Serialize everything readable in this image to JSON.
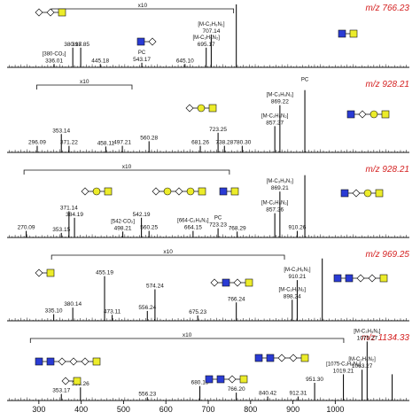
{
  "chart_data": {
    "type": "mass-spectra",
    "xlabel": "",
    "ylabel": "",
    "xlim": [
      225,
      1175
    ],
    "x_ticks": [
      300,
      400,
      500,
      600,
      700,
      800,
      900,
      1000
    ],
    "magnification_label": "x10",
    "colors": {
      "precursor": "#d42020",
      "hexnac": "#2a3bd4",
      "hex": "#ecec2a",
      "ink": "#111111"
    },
    "panels": [
      {
        "precursor": "m/z 766.23",
        "precursor_mz": 766.23,
        "zoom_range": [
          330,
          760
        ],
        "peaks": [
          {
            "mz": 336.01,
            "h": 0.05,
            "label": "336.01",
            "lead": "[380-CO₂]"
          },
          {
            "mz": 380.17,
            "h": 0.3,
            "label": "380.17"
          },
          {
            "mz": 398.85,
            "h": 0.3,
            "label": "398.85"
          },
          {
            "mz": 445.18,
            "h": 0.05,
            "label": "445.18"
          },
          {
            "mz": 543.17,
            "h": 0.07,
            "label": "543.17",
            "lead": "PC"
          },
          {
            "mz": 645.1,
            "h": 0.05,
            "label": "645.10"
          },
          {
            "mz": 695.17,
            "h": 0.3,
            "label": "695.17",
            "lead": "[M-C₂H₅N₂]"
          },
          {
            "mz": 707.14,
            "h": 0.5,
            "label": "707.14",
            "lead": "[M-C₃H₉N₁]"
          },
          {
            "mz": 766.23,
            "h": 0.96
          }
        ]
      },
      {
        "precursor": "m/z 928.21",
        "precursor_mz": 928.21,
        "zoom_range": [
          295,
          520
        ],
        "peaks": [
          {
            "mz": 296.09,
            "h": 0.1,
            "label": "296.09"
          },
          {
            "mz": 353.14,
            "h": 0.28,
            "label": "353.14"
          },
          {
            "mz": 371.22,
            "h": 0.1,
            "label": "371.22"
          },
          {
            "mz": 458.11,
            "h": 0.09,
            "label": "458.11"
          },
          {
            "mz": 497.21,
            "h": 0.1,
            "label": "497.21"
          },
          {
            "mz": 560.28,
            "h": 0.17,
            "label": "560.28"
          },
          {
            "mz": 681.26,
            "h": 0.1,
            "label": "681.26"
          },
          {
            "mz": 723.25,
            "h": 0.3,
            "label": "723.25"
          },
          {
            "mz": 738.28,
            "h": 0.1,
            "label": "738.28"
          },
          {
            "mz": 780.3,
            "h": 0.1,
            "label": "780.30"
          },
          {
            "mz": 857.27,
            "h": 0.4,
            "label": "857.27",
            "lead": "[M-C₂H₅N₂]"
          },
          {
            "mz": 869.22,
            "h": 0.72,
            "label": "869.22",
            "lead": "[M-C₃H₉N₁]"
          },
          {
            "mz": 928.21,
            "h": 0.95,
            "lead": "PC"
          }
        ]
      },
      {
        "precursor": "m/z 928.21",
        "precursor_mz": 928.21,
        "zoom_range": [
          265,
          750
        ],
        "peaks": [
          {
            "mz": 270.09,
            "h": 0.1,
            "label": "270.09"
          },
          {
            "mz": 353.15,
            "h": 0.07,
            "label": "353.15"
          },
          {
            "mz": 371.14,
            "h": 0.4,
            "label": "371.14"
          },
          {
            "mz": 384.19,
            "h": 0.3,
            "label": "384.19"
          },
          {
            "mz": 498.21,
            "h": 0.09,
            "label": "498.21",
            "lead": "[542-CO₂]"
          },
          {
            "mz": 542.19,
            "h": 0.3,
            "label": "542.19"
          },
          {
            "mz": 560.25,
            "h": 0.1,
            "label": "560.25"
          },
          {
            "mz": 664.15,
            "h": 0.1,
            "label": "664.15",
            "lead": "[664-C₂H₅N₂]"
          },
          {
            "mz": 723.23,
            "h": 0.14,
            "label": "723.23",
            "lead": "PC"
          },
          {
            "mz": 768.29,
            "h": 0.09,
            "label": "768.29"
          },
          {
            "mz": 857.26,
            "h": 0.37,
            "label": "857.26",
            "lead": "[M-C₂H₅N₂]"
          },
          {
            "mz": 869.21,
            "h": 0.7,
            "label": "869.21",
            "lead": "[M-C₃H₉N₁]"
          },
          {
            "mz": 910.26,
            "h": 0.1,
            "label": "910.26"
          },
          {
            "mz": 928.21,
            "h": 0.95
          }
        ]
      },
      {
        "precursor": "m/z 969.25",
        "precursor_mz": 969.25,
        "zoom_range": [
          330,
          880
        ],
        "peaks": [
          {
            "mz": 335.1,
            "h": 0.1,
            "label": "335.10"
          },
          {
            "mz": 380.14,
            "h": 0.2,
            "label": "380.14"
          },
          {
            "mz": 455.19,
            "h": 0.68,
            "label": "455.19"
          },
          {
            "mz": 473.11,
            "h": 0.09,
            "label": "473.11"
          },
          {
            "mz": 556.24,
            "h": 0.15,
            "label": "556.24"
          },
          {
            "mz": 574.24,
            "h": 0.48,
            "label": "574.24"
          },
          {
            "mz": 675.23,
            "h": 0.08,
            "label": "675.23"
          },
          {
            "mz": 766.24,
            "h": 0.28,
            "label": "766.24"
          },
          {
            "mz": 898.24,
            "h": 0.32,
            "label": "898.24",
            "lead": "[M-C₂H₅N₂]"
          },
          {
            "mz": 910.21,
            "h": 0.62,
            "label": "910.21",
            "lead": "[M-C₃H₉N₁]"
          },
          {
            "mz": 969.25,
            "h": 0.95
          }
        ]
      },
      {
        "precursor": "m/z 1134.33",
        "precursor_mz": 1134.33,
        "zoom_range": [
          280,
          1020
        ],
        "peaks": [
          {
            "mz": 353.17,
            "h": 0.1,
            "label": "353.17"
          },
          {
            "mz": 398.26,
            "h": 0.2,
            "label": "398.26"
          },
          {
            "mz": 556.23,
            "h": 0.05,
            "label": "556.23"
          },
          {
            "mz": 680.19,
            "h": 0.22,
            "label": "680.19"
          },
          {
            "mz": 766.2,
            "h": 0.12,
            "label": "766.20"
          },
          {
            "mz": 840.42,
            "h": 0.06,
            "label": "840.42"
          },
          {
            "mz": 912.31,
            "h": 0.06,
            "label": "912.31"
          },
          {
            "mz": 951.3,
            "h": 0.27,
            "label": "951.30"
          },
          {
            "mz": 1019.21,
            "h": 0.4,
            "label": "1019.21",
            "lead": "[1075-C₂H₅N₂]"
          },
          {
            "mz": 1063.27,
            "h": 0.47,
            "label": "1063.27",
            "lead": "[M-C₂H₅N₂]"
          },
          {
            "mz": 1075.27,
            "h": 0.9,
            "label": "1075.27",
            "lead": "[M-C₃H₉N₁]"
          },
          {
            "mz": 1134.33,
            "h": 0.4
          }
        ]
      }
    ]
  }
}
